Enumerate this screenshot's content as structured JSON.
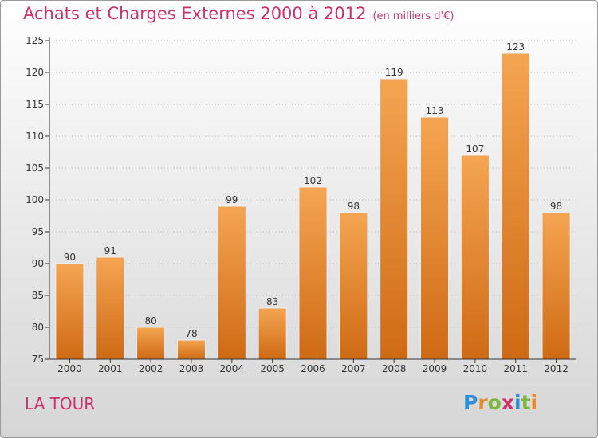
{
  "title": "Achats et Charges Externes 2000 à 2012",
  "unit": "(en milliers d'€)",
  "place": "LA TOUR",
  "logo": {
    "letters": [
      "P",
      "r",
      "o",
      "x",
      "i",
      "t",
      "i"
    ],
    "colors": [
      "#2a8fd6",
      "#e8892b",
      "#7cb640",
      "#d0306a",
      "#2a8fd6",
      "#7cb640",
      "#e8892b"
    ]
  },
  "colors": {
    "bar_top": "#f5a552",
    "bar_bottom": "#cf6a14",
    "bar_edge": "#e9eef7",
    "axis": "#333333",
    "grid": "#bbbbbb",
    "accent": "#d0306a"
  },
  "chart_data": {
    "type": "bar",
    "title": "Achats et Charges Externes 2000 à 2012",
    "xlabel": "",
    "ylabel": "",
    "categories": [
      "2000",
      "2001",
      "2002",
      "2003",
      "2004",
      "2005",
      "2006",
      "2007",
      "2008",
      "2009",
      "2010",
      "2011",
      "2012"
    ],
    "values": [
      90,
      91,
      80,
      78,
      99,
      83,
      102,
      98,
      119,
      113,
      107,
      123,
      98
    ],
    "ylim": [
      75,
      125
    ],
    "yticks": [
      75,
      80,
      85,
      90,
      95,
      100,
      105,
      110,
      115,
      120,
      125
    ],
    "grid": true
  }
}
